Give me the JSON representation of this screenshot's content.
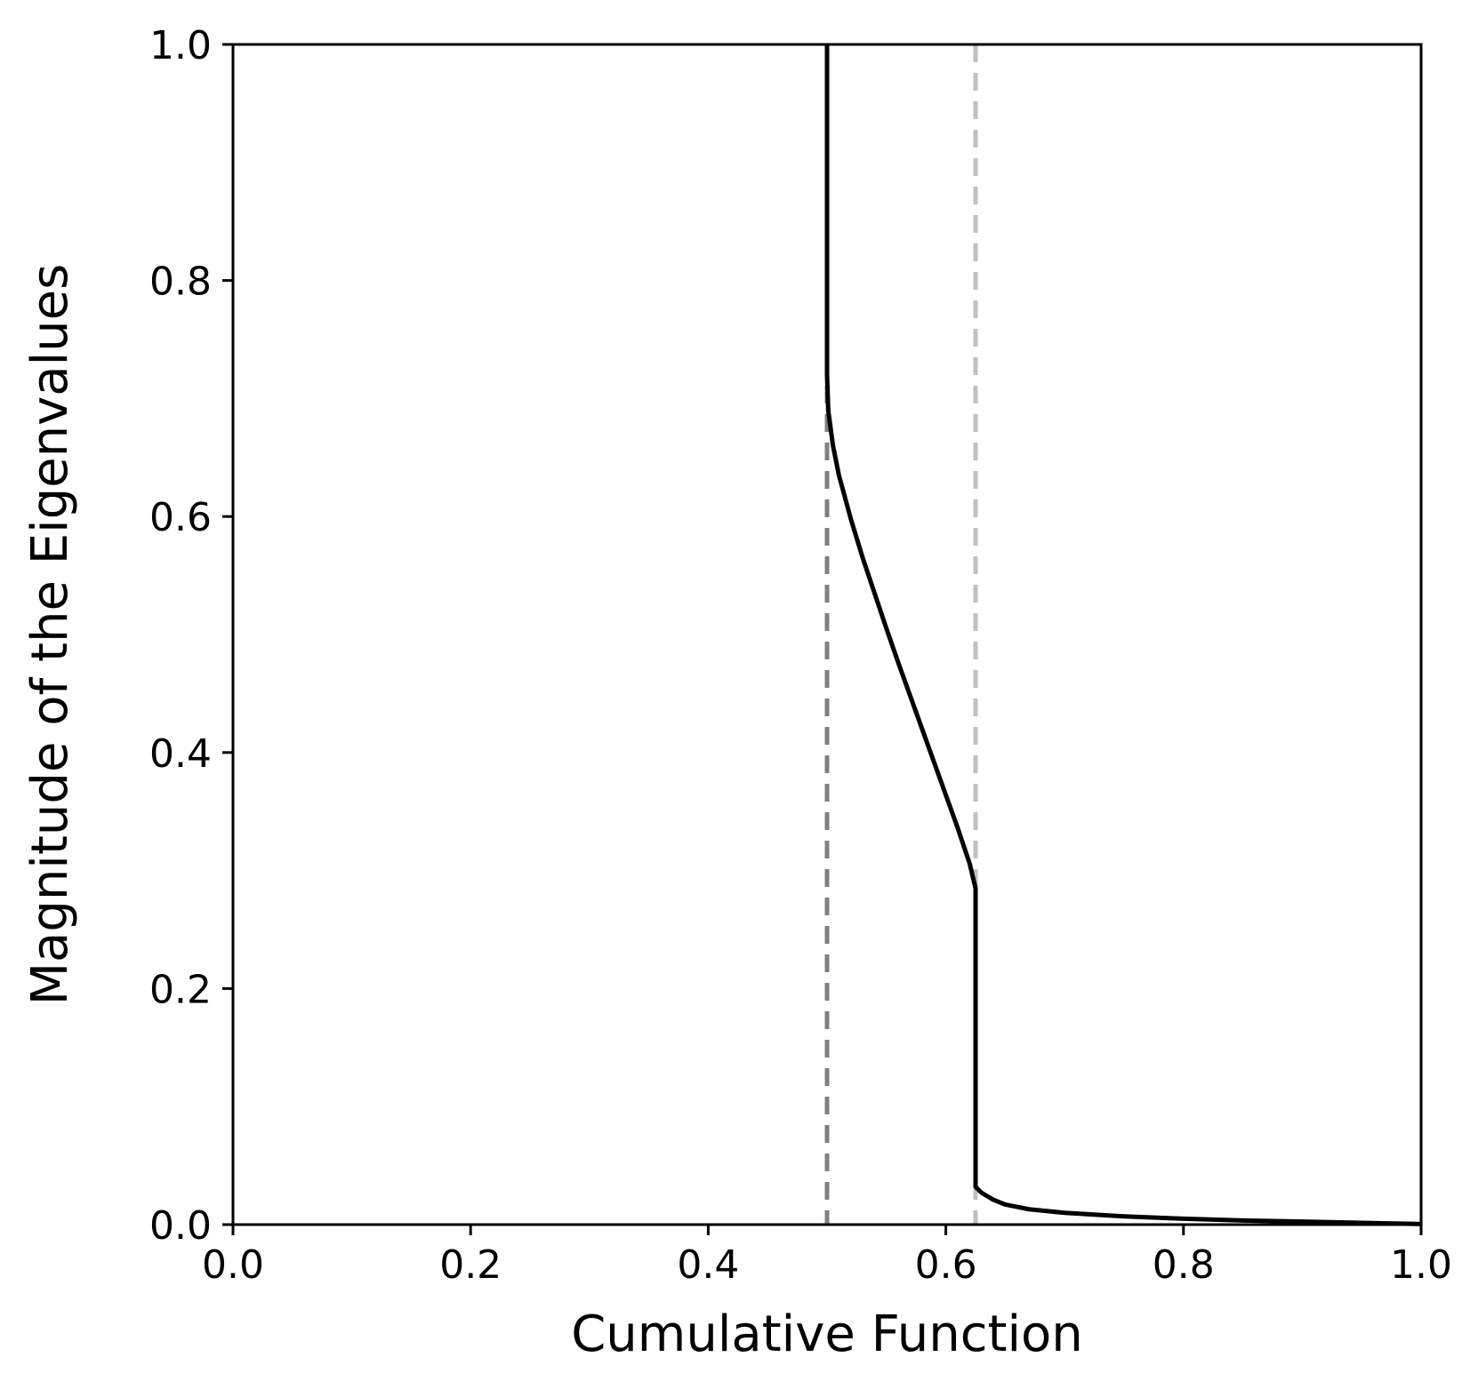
{
  "chart_data": {
    "type": "line",
    "title": "",
    "xlabel": "Cumulative Function",
    "ylabel": "Magnitude of the Eigenvalues",
    "xlim": [
      0.0,
      1.0
    ],
    "ylim": [
      0.0,
      1.0
    ],
    "xticks": [
      "0.0",
      "0.2",
      "0.4",
      "0.6",
      "0.8",
      "1.0"
    ],
    "yticks": [
      "0.0",
      "0.2",
      "0.4",
      "0.6",
      "0.8",
      "1.0"
    ],
    "grid": false,
    "series": [
      {
        "color": "#000000",
        "style": "solid",
        "x": [
          0.5,
          0.5,
          0.501,
          0.505,
          0.51,
          0.52,
          0.53,
          0.54,
          0.55,
          0.56,
          0.57,
          0.58,
          0.59,
          0.6,
          0.61,
          0.62,
          0.625,
          0.625,
          0.63,
          0.64,
          0.65,
          0.67,
          0.7,
          0.75,
          0.8,
          0.85,
          0.9,
          0.95,
          1.0
        ],
        "y": [
          1.0,
          0.72,
          0.69,
          0.66,
          0.635,
          0.598,
          0.565,
          0.535,
          0.505,
          0.476,
          0.448,
          0.42,
          0.392,
          0.364,
          0.336,
          0.306,
          0.285,
          0.032,
          0.027,
          0.021,
          0.017,
          0.013,
          0.01,
          0.007,
          0.005,
          0.0035,
          0.0025,
          0.0015,
          0.0005
        ]
      }
    ],
    "reference_lines": [
      {
        "x": 0.5,
        "color": "#808080",
        "style": "dashed"
      },
      {
        "x": 0.625,
        "color": "#c0c0c0",
        "style": "dashed"
      }
    ]
  }
}
